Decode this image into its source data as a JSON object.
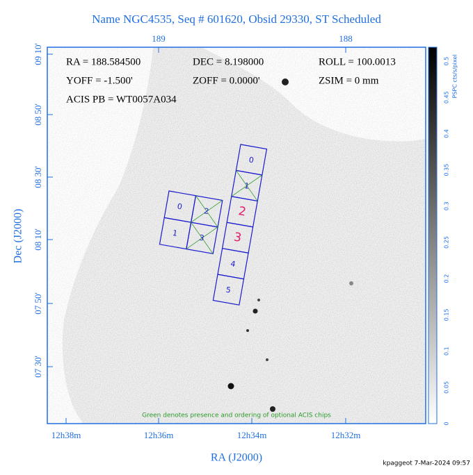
{
  "header": {
    "title": "Name NGC4535, Seq # 601620, Obsid 29330, ST Scheduled"
  },
  "info": {
    "ra": "RA = 188.584500",
    "dec": "DEC = 8.198000",
    "roll": "ROLL = 100.0013",
    "yoff": "YOFF = -1.500'",
    "zoff": "ZOFF = 0.0000'",
    "zsim": "ZSIM = 0 mm",
    "acis": "ACIS PB = WT0057A034"
  },
  "axes": {
    "x_label": "RA (J2000)",
    "y_label": "Dec (J2000)",
    "top_ticks": [
      "189",
      "188"
    ],
    "bottom_ticks": [
      "12h38m",
      "12h36m",
      "12h34m",
      "12h32m"
    ],
    "left_ticks": [
      "09 10'",
      "08 50'",
      "08 30'",
      "08 10'",
      "07 50'",
      "07 30'"
    ]
  },
  "colorbar": {
    "label": "PSPC cts/s/pixel",
    "ticks": [
      "0",
      "0.05",
      "0.1",
      "0.15",
      "0.2",
      "0.25",
      "0.3",
      "0.35",
      "0.4",
      "0.45",
      "0.5"
    ]
  },
  "s_array": {
    "chips": [
      "0",
      "1",
      "2",
      "3",
      "4",
      "5"
    ]
  },
  "i_array": {
    "chips": [
      "0",
      "2",
      "1",
      "3"
    ]
  },
  "note": "Green denotes presence and ordering of optional ACIS chips",
  "footer": "kpaggeot  7-Mar-2024 09:57"
}
